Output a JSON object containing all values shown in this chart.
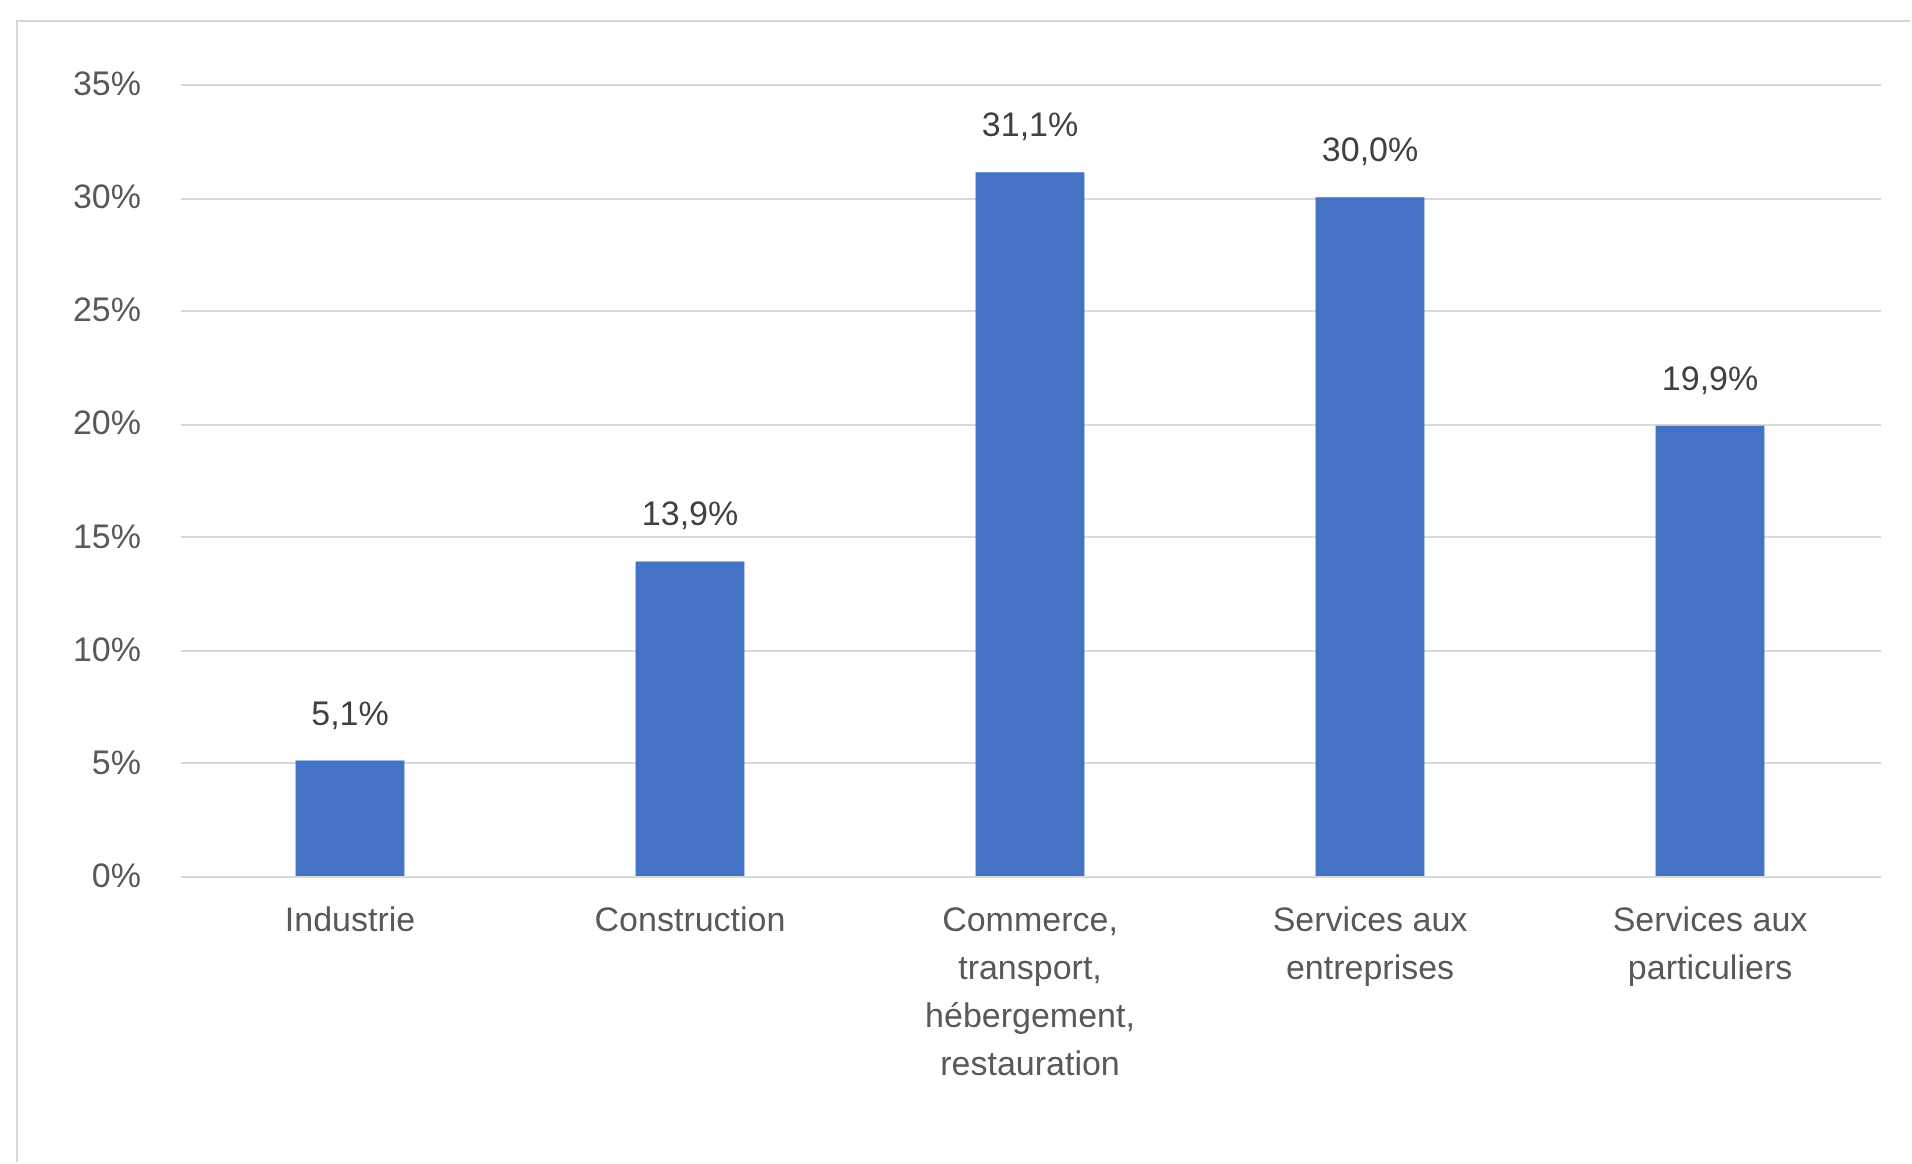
{
  "chart_data": {
    "type": "bar",
    "categories": [
      "Industrie",
      "Construction",
      "Commerce, transport, hébergement, restauration",
      "Services aux entreprises",
      "Services aux particuliers"
    ],
    "values": [
      5.1,
      13.9,
      31.1,
      30.0,
      19.9
    ],
    "value_labels": [
      "5,1%",
      "13,9%",
      "31,1%",
      "30,0%",
      "19,9%"
    ],
    "color": "#4472c4",
    "ylim": [
      0,
      35
    ],
    "yticks": [
      {
        "value": 0,
        "label": "0%"
      },
      {
        "value": 5,
        "label": "5%"
      },
      {
        "value": 10,
        "label": "10%"
      },
      {
        "value": 15,
        "label": "15%"
      },
      {
        "value": 20,
        "label": "20%"
      },
      {
        "value": 25,
        "label": "25%"
      },
      {
        "value": 30,
        "label": "30%"
      },
      {
        "value": 35,
        "label": "35%"
      }
    ],
    "grid": "y"
  }
}
